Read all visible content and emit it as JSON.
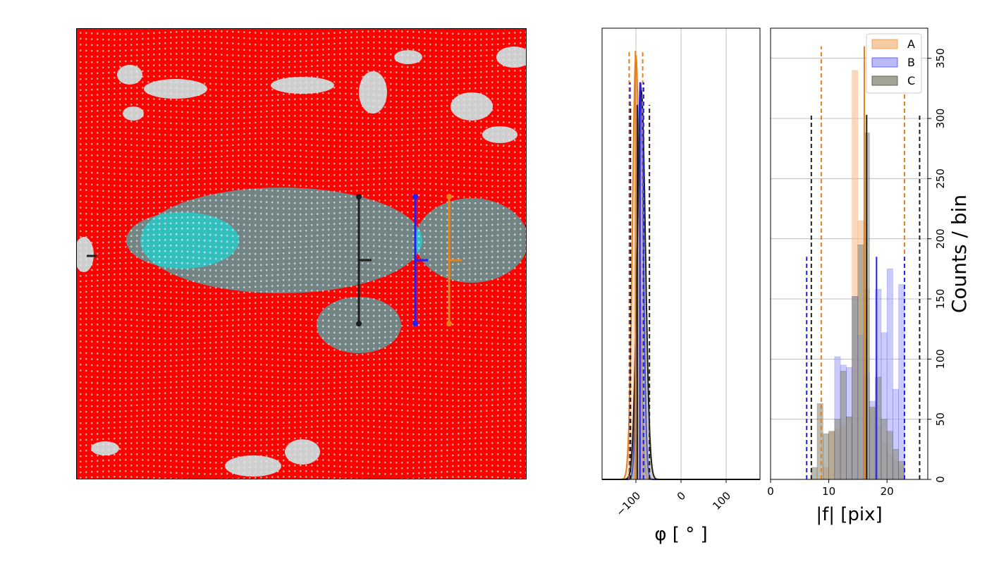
{
  "colors": {
    "A": "#e8801a",
    "A_fill": "#f5c08f",
    "B": "#1f1fff",
    "B_fill": "#a9a9f5",
    "C": "#1e1e1a",
    "C_fill": "#8c8e7c",
    "field_red": "#ff0000",
    "field_cyan": "#00f0f0",
    "field_gray": "#cfcfcf"
  },
  "chart_data": [
    {
      "type": "image",
      "description_key": "vector-field"
    },
    {
      "type": "line",
      "xlabel": "φ [ ° ]",
      "xlim": [
        -175,
        175
      ],
      "ylim": [
        0,
        1
      ],
      "xticks": [
        -100,
        0,
        100
      ],
      "xtick_labels": [
        "−100",
        "0",
        "100"
      ],
      "grid": true,
      "series": [
        {
          "key": "A",
          "mode": -100,
          "width": 12,
          "peak": 0.94
        },
        {
          "key": "B",
          "mode": -90,
          "width": 10,
          "peak": 0.88
        },
        {
          "key": "C",
          "mode": -88,
          "width": 14,
          "peak": 0.86
        }
      ],
      "vlines": [
        {
          "key": "A",
          "x": -101,
          "top": 0.95,
          "style": "solid"
        },
        {
          "key": "A",
          "x": -115,
          "top": 0.95,
          "style": "dashed"
        },
        {
          "key": "A",
          "x": -85,
          "top": 0.95,
          "style": "dashed"
        },
        {
          "key": "B",
          "x": -91,
          "top": 0.88,
          "style": "solid"
        },
        {
          "key": "B",
          "x": -113,
          "top": 0.88,
          "style": "dashed"
        },
        {
          "key": "B",
          "x": -83,
          "top": 0.88,
          "style": "dashed"
        },
        {
          "key": "C",
          "x": -97,
          "top": 0.83,
          "style": "solid"
        },
        {
          "key": "C",
          "x": -112,
          "top": 0.83,
          "style": "dashed"
        },
        {
          "key": "C",
          "x": -70,
          "top": 0.83,
          "style": "dashed"
        }
      ]
    },
    {
      "type": "bar",
      "xlabel": "|f| [pix]",
      "ylabel": "Counts / bin",
      "xlim": [
        0,
        27
      ],
      "ylim": [
        0,
        375
      ],
      "xticks": [
        0,
        10,
        20
      ],
      "yticks": [
        0,
        50,
        100,
        150,
        200,
        250,
        300,
        350
      ],
      "grid": true,
      "legend": "top-right",
      "bin_edges": [
        7,
        8,
        9,
        10,
        11,
        12,
        13,
        14,
        15,
        16,
        17,
        18,
        19,
        20,
        21,
        22,
        23,
        24
      ],
      "series": [
        {
          "name": "A",
          "key": "A",
          "values": [
            0,
            0,
            10,
            40,
            42,
            45,
            52,
            340,
            215,
            158,
            60,
            45,
            30,
            20,
            15,
            10,
            0
          ]
        },
        {
          "name": "B",
          "key": "B",
          "values": [
            0,
            0,
            0,
            0,
            102,
            95,
            93,
            152,
            120,
            88,
            65,
            158,
            122,
            175,
            75,
            162,
            0
          ]
        },
        {
          "name": "C",
          "key": "C",
          "values": [
            10,
            63,
            38,
            40,
            50,
            90,
            52,
            152,
            195,
            288,
            60,
            85,
            50,
            40,
            25,
            15,
            0
          ]
        }
      ],
      "vlines": [
        {
          "key": "A",
          "x": 16.1,
          "top": 360,
          "style": "solid"
        },
        {
          "key": "A",
          "x": 8.7,
          "top": 360,
          "style": "dashed"
        },
        {
          "key": "A",
          "x": 23.0,
          "top": 360,
          "style": "dashed"
        },
        {
          "key": "B",
          "x": 18.2,
          "top": 185,
          "style": "solid"
        },
        {
          "key": "B",
          "x": 6.2,
          "top": 185,
          "style": "dashed"
        },
        {
          "key": "B",
          "x": 23.0,
          "top": 185,
          "style": "dashed"
        },
        {
          "key": "C",
          "x": 16.5,
          "top": 303,
          "style": "solid"
        },
        {
          "key": "C",
          "x": 7.0,
          "top": 303,
          "style": "dashed"
        },
        {
          "key": "C",
          "x": 25.6,
          "top": 303,
          "style": "dashed"
        }
      ]
    }
  ]
}
